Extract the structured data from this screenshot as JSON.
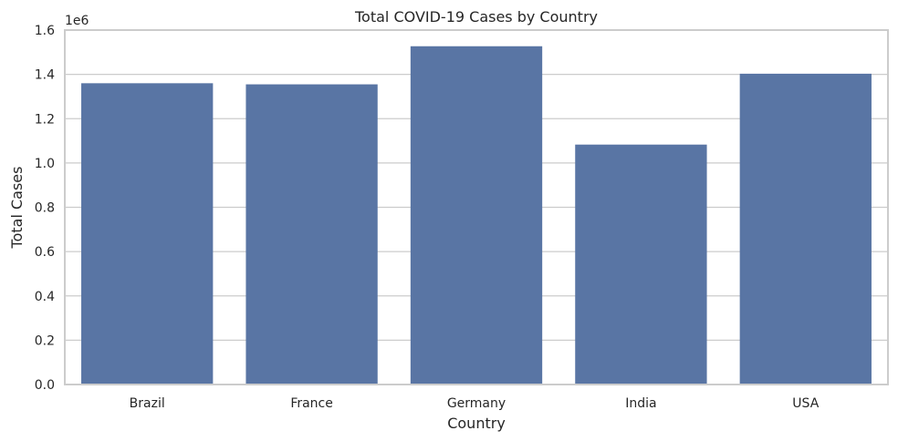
{
  "chart_data": {
    "type": "bar",
    "title": "Total COVID-19 Cases by Country",
    "xlabel": "Country",
    "ylabel": "Total Cases",
    "y_scale_label": "1e6",
    "categories": [
      "Brazil",
      "France",
      "Germany",
      "India",
      "USA"
    ],
    "values": [
      1360000,
      1355000,
      1527000,
      1083000,
      1403000
    ],
    "ylim": [
      0,
      1600000
    ],
    "yticks": [
      0,
      200000,
      400000,
      600000,
      800000,
      1000000,
      1200000,
      1400000,
      1600000
    ],
    "ytick_labels": [
      "0.0",
      "0.2",
      "0.4",
      "0.6",
      "0.8",
      "1.0",
      "1.2",
      "1.4",
      "1.6"
    ],
    "grid": true,
    "bar_color": "#5975a4",
    "grid_color": "#cccccc",
    "spine_color": "#cccccc"
  }
}
